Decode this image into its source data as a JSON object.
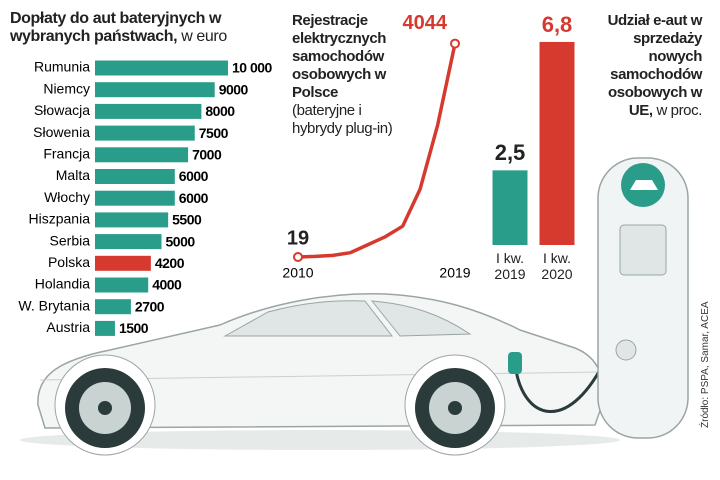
{
  "source": "Źródło: PSPA, Samar, ACEA",
  "chart_data": [
    {
      "type": "hbar",
      "title": "Dopłaty do aut bateryjnych w wybranych państwach,",
      "subtitle": "w euro",
      "categories": [
        "Rumunia",
        "Niemcy",
        "Słowacja",
        "Słowenia",
        "Francja",
        "Malta",
        "Włochy",
        "Hiszpania",
        "Serbia",
        "Polska",
        "Holandia",
        "W. Brytania",
        "Austria"
      ],
      "values": [
        10000,
        9000,
        8000,
        7500,
        7000,
        6000,
        6000,
        5500,
        5000,
        4200,
        4000,
        2700,
        1500
      ],
      "value_labels": [
        "10 000",
        "9000",
        "8000",
        "7500",
        "7000",
        "6000",
        "6000",
        "5500",
        "5000",
        "4200",
        "4000",
        "2700",
        "1500"
      ],
      "colors": [
        "#2a9d8a",
        "#2a9d8a",
        "#2a9d8a",
        "#2a9d8a",
        "#2a9d8a",
        "#2a9d8a",
        "#2a9d8a",
        "#2a9d8a",
        "#2a9d8a",
        "#d63a2f",
        "#2a9d8a",
        "#2a9d8a",
        "#2a9d8a"
      ],
      "xlim": [
        0,
        10000
      ]
    },
    {
      "type": "line",
      "title": "Rejestracje elektrycznych samochodów osobowych w Polsce",
      "subtitle": "(bateryjne i hybrydy plug-in)",
      "x": [
        2010,
        2011,
        2012,
        2013,
        2014,
        2015,
        2016,
        2017,
        2018,
        2019
      ],
      "values": [
        19,
        30,
        50,
        100,
        250,
        400,
        600,
        1300,
        2500,
        4044
      ],
      "value_labels": [
        "19",
        null,
        null,
        null,
        null,
        null,
        null,
        null,
        null,
        "4044"
      ],
      "xticks": [
        2010,
        2019
      ],
      "xlim": [
        2010,
        2019
      ],
      "ylim": [
        0,
        4300
      ],
      "color": "#d63a2f"
    },
    {
      "type": "bar",
      "title": "Udział e-aut w sprzedaży nowych samochodów osobowych w UE,",
      "subtitle": "w proc.",
      "categories": [
        "I kw. 2019",
        "I kw. 2020"
      ],
      "values": [
        2.5,
        6.8
      ],
      "value_labels": [
        "2,5",
        "6,8"
      ],
      "colors": [
        "#2a9d8a",
        "#d63a2f"
      ],
      "ylim": [
        0,
        7.2
      ]
    }
  ]
}
